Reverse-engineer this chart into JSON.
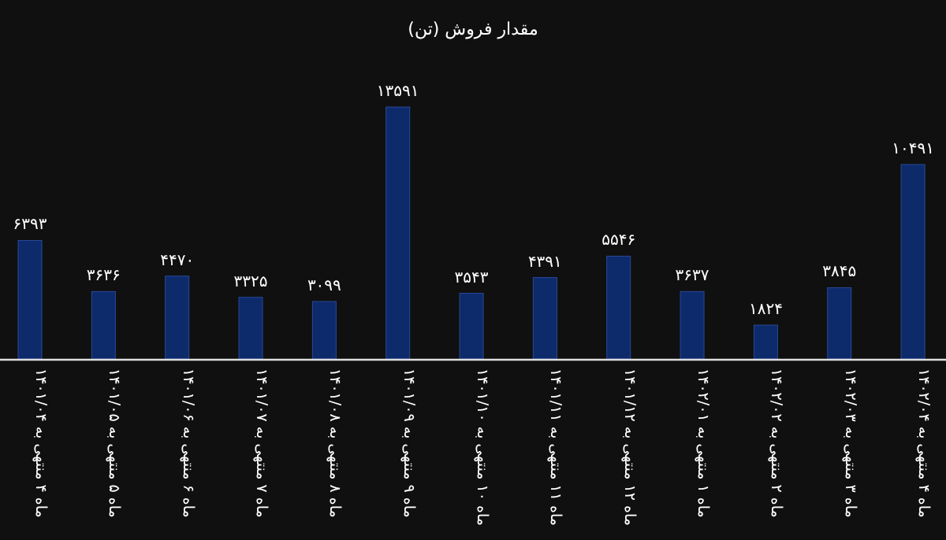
{
  "chart_data": {
    "type": "bar",
    "title": "مقدار فروش (تن)",
    "categories": [
      "ماه ۴ منتهی به ۱۴۰۱/۰۴",
      "ماه ۵ منتهی به ۱۴۰۱/۰۵",
      "ماه ۶ منتهی به ۱۴۰۱/۰۶",
      "ماه ۷ منتهی به ۱۴۰۱/۰۷",
      "ماه ۸ منتهی به ۱۴۰۱/۰۸",
      "ماه ۹ منتهی به ۱۴۰۱/۰۹",
      "ماه ۱۰ منتهی به ۱۴۰۱/۱۰",
      "ماه ۱۱ منتهی به ۱۴۰۱/۱۱",
      "ماه ۱۲ منتهی به ۱۴۰۱/۱۲",
      "ماه ۱ منتهی به ۱۴۰۲/۰۱",
      "ماه ۲ منتهی به ۱۴۰۲/۰۲",
      "ماه ۳ منتهی به ۱۴۰۲/۰۳",
      "ماه ۴ منتهی به ۱۴۰۲/۰۴"
    ],
    "values": [
      6393,
      3636,
      4470,
      3325,
      3099,
      13591,
      3543,
      4391,
      5546,
      3637,
      1824,
      3845,
      10491
    ],
    "value_labels": [
      "۶۳۹۳",
      "۳۶۳۶",
      "۴۴۷۰",
      "۳۳۲۵",
      "۳۰۹۹",
      "۱۳۵۹۱",
      "۳۵۴۳",
      "۴۳۹۱",
      "۵۵۴۶",
      "۳۶۳۷",
      "۱۸۲۴",
      "۳۸۴۵",
      "۱۰۴۹۱"
    ],
    "color": "#0d2a6b"
  }
}
